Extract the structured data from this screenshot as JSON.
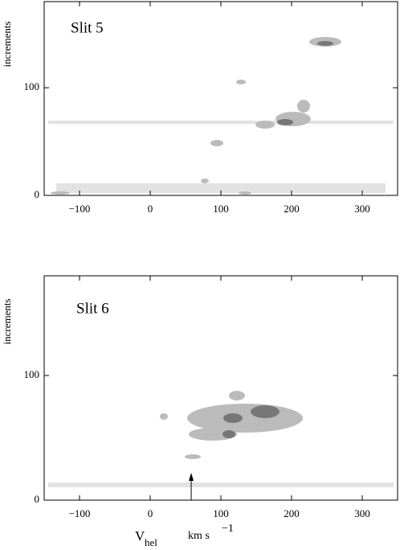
{
  "chart_data": [
    {
      "type": "image",
      "title": "Slit 5",
      "ylabel": "increments",
      "xlim": [
        -150,
        350
      ],
      "xticks": [
        {
          "value": -100,
          "label": "−100"
        },
        0,
        100,
        200,
        300
      ],
      "ylim": [
        0,
        180
      ],
      "yticks": [
        0,
        100
      ]
    },
    {
      "type": "image",
      "title": "Slit 6",
      "ylabel": "increments",
      "xlabel": {
        "main": "V",
        "sub": "hel",
        "unit": "km s",
        "sup": "−1"
      },
      "xlim": [
        -150,
        350
      ],
      "xticks": [
        {
          "value": -100,
          "label": "−100"
        },
        0,
        100,
        200,
        300
      ],
      "ylim": [
        0,
        180
      ],
      "yticks": [
        0,
        100
      ],
      "arrow_x": 58
    }
  ]
}
